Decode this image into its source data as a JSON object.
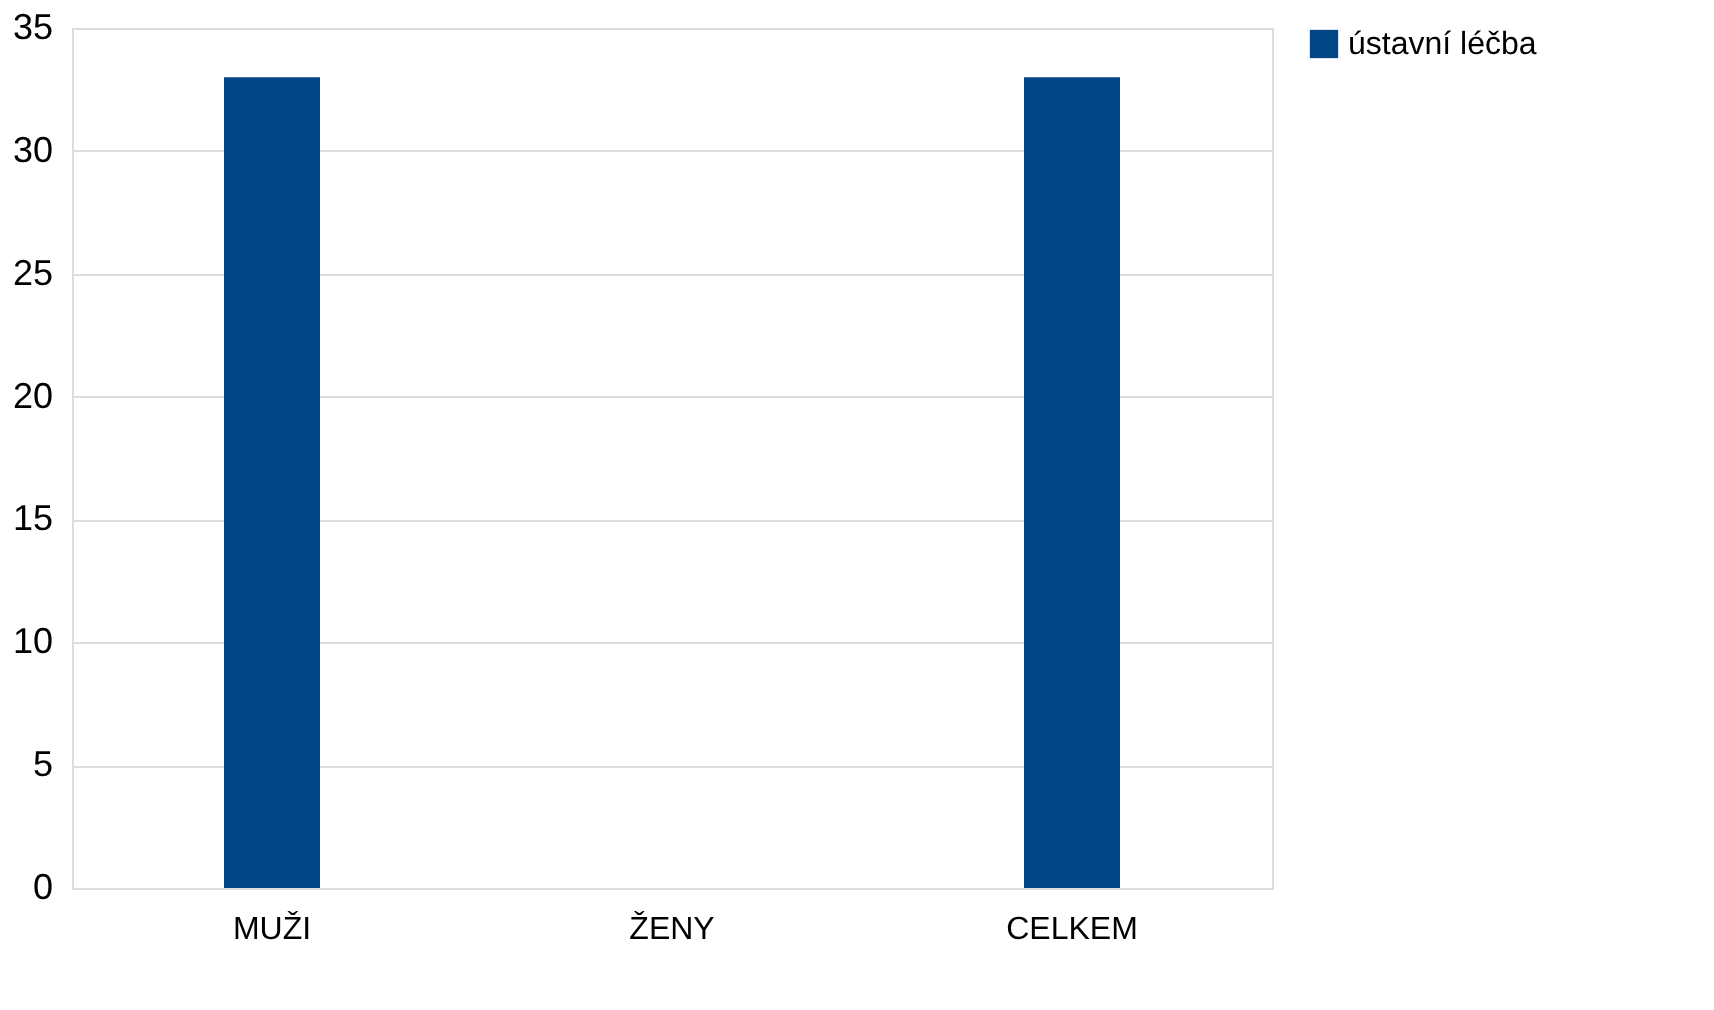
{
  "chart_data": {
    "type": "bar",
    "categories": [
      "MUŽI",
      "ŽENY",
      "CELKEM"
    ],
    "series": [
      {
        "name": "ústavní léčba",
        "color": "#004586",
        "values": [
          33,
          0,
          33
        ]
      }
    ],
    "ylim": [
      0,
      35
    ],
    "yticks": [
      0,
      5,
      10,
      15,
      20,
      25,
      30,
      35
    ],
    "grid": "y",
    "legend": "right"
  }
}
